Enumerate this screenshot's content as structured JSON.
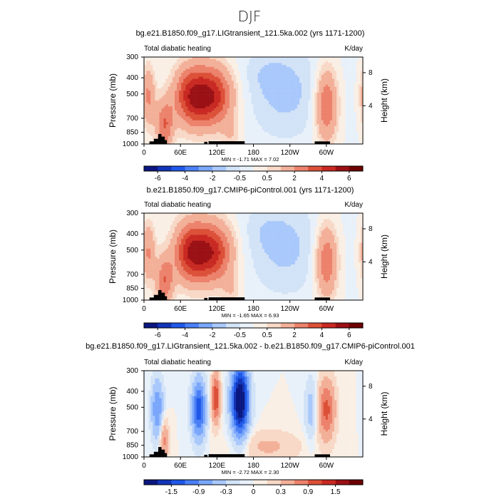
{
  "chart_data": {
    "type": "heatmap",
    "title": "DJF",
    "panels": [
      {
        "title": "bg.e21.B1850.f09_g17.LIGtransient_121.5ka.002 (yrs 1171-1200)",
        "left_label": "Total diabatic heating",
        "right_label": "K/day",
        "xlabel": "",
        "ylabel": "Pressure (mb)",
        "y2label": "Height (km)",
        "x_ticks": [
          "0",
          "60E",
          "120E",
          "180",
          "120W",
          "60W"
        ],
        "y_ticks": [
          "300",
          "400",
          "500",
          "700",
          "850",
          "1000"
        ],
        "y2_ticks": [
          "8",
          "4"
        ],
        "stats": {
          "min": -1.71,
          "max": 7.02,
          "text": "MIN =   -1.71   MAX =     7.02"
        },
        "colorbar_levels": [
          -7,
          -6,
          -5,
          -4,
          -3,
          -2,
          -1,
          -0.5,
          0,
          0.5,
          1,
          2,
          3,
          4,
          5,
          6,
          7
        ],
        "colorbar_ticks": [
          "-6",
          "-4",
          "-2",
          "-0.5",
          "0.5",
          "2",
          "4",
          "6"
        ],
        "colors": [
          "#0b1780",
          "#1234b8",
          "#1f58e8",
          "#4a7ff5",
          "#7aa7fb",
          "#a9c8fb",
          "#d3e3f7",
          "#e8f1fa",
          "#faefe5",
          "#f8d8c6",
          "#f3b099",
          "#ec826c",
          "#dc5038",
          "#c82922",
          "#9a1014",
          "#6d0000"
        ]
      },
      {
        "title": "b.e21.B1850.f09_g17.CMIP6-piControl.001 (yrs 1171-1200)",
        "left_label": "Total diabatic heating",
        "right_label": "K/day",
        "xlabel": "",
        "ylabel": "Pressure (mb)",
        "y2label": "Height (km)",
        "x_ticks": [
          "0",
          "60E",
          "120E",
          "180",
          "120W",
          "60W"
        ],
        "y_ticks": [
          "300",
          "400",
          "500",
          "700",
          "850",
          "1000"
        ],
        "y2_ticks": [
          "8",
          "4"
        ],
        "stats": {
          "min": -1.65,
          "max": 6.93,
          "text": "MIN =   -1.65   MAX =     6.93"
        },
        "colorbar_levels": [
          -7,
          -6,
          -5,
          -4,
          -3,
          -2,
          -1,
          -0.5,
          0,
          0.5,
          1,
          2,
          3,
          4,
          5,
          6,
          7
        ],
        "colorbar_ticks": [
          "-6",
          "-4",
          "-2",
          "-0.5",
          "0.5",
          "2",
          "4",
          "6"
        ],
        "colors": [
          "#0b1780",
          "#1234b8",
          "#1f58e8",
          "#4a7ff5",
          "#7aa7fb",
          "#a9c8fb",
          "#d3e3f7",
          "#e8f1fa",
          "#faefe5",
          "#f8d8c6",
          "#f3b099",
          "#ec826c",
          "#dc5038",
          "#c82922",
          "#9a1014",
          "#6d0000"
        ]
      },
      {
        "title": "bg.e21.B1850.f09_g17.LIGtransient_121.5ka.002 - b.e21.B1850.f09_g17.CMIP6-piControl.001",
        "left_label": "Total diabatic heating",
        "right_label": "K/day",
        "xlabel": "",
        "ylabel": "Pressure (mb)",
        "y2label": "Height (km)",
        "x_ticks": [
          "0",
          "60E",
          "120E",
          "180",
          "120W",
          "60W"
        ],
        "y_ticks": [
          "300",
          "400",
          "500",
          "700",
          "850",
          "1000"
        ],
        "y2_ticks": [
          "8",
          "4"
        ],
        "stats": {
          "min": -2.72,
          "max": 2.3,
          "text": "MIN =   -2.72   MAX =     2.30"
        },
        "colorbar_levels": [
          -2.1,
          -1.8,
          -1.5,
          -1.2,
          -0.9,
          -0.6,
          -0.3,
          -0.1,
          0,
          0.1,
          0.3,
          0.6,
          0.9,
          1.2,
          1.5,
          1.8,
          2.1
        ],
        "colorbar_ticks": [
          "-1.5",
          "-0.9",
          "-0.3",
          "0",
          "0.3",
          "0.9",
          "1.5"
        ],
        "colors": [
          "#0b1780",
          "#1234b8",
          "#1f58e8",
          "#4a7ff5",
          "#7aa7fb",
          "#a9c8fb",
          "#d3e3f7",
          "#e8f1fa",
          "#faefe5",
          "#f8d8c6",
          "#f3b099",
          "#ec826c",
          "#dc5038",
          "#c82922",
          "#9a1014",
          "#6d0000"
        ]
      }
    ]
  }
}
